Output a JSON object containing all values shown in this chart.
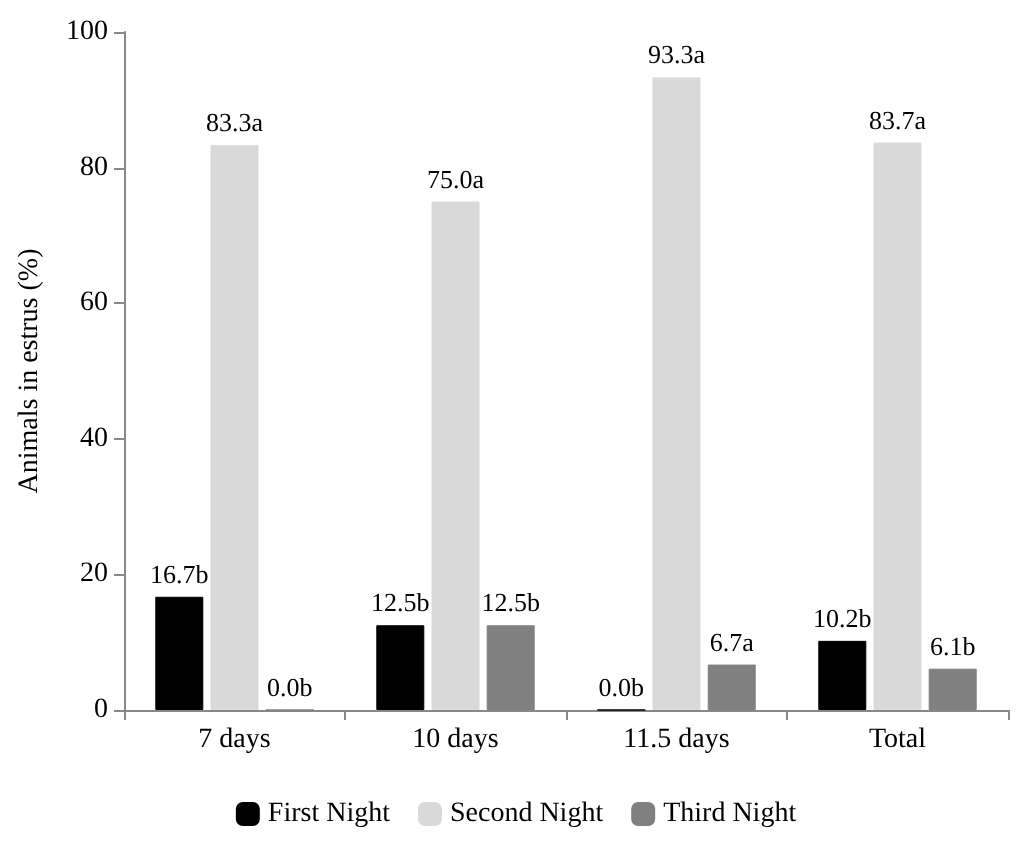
{
  "chart_data": {
    "type": "bar",
    "ylabel": "Animals in estrus (%)",
    "categories": [
      "7 days",
      "10 days",
      "11.5 days",
      "Total"
    ],
    "series": [
      {
        "name": "First Night",
        "color": "#000000",
        "values": [
          16.7,
          12.5,
          0.0,
          10.2
        ],
        "value_labels": [
          "16.7b",
          "12.5b",
          "0.0b",
          "10.2b"
        ]
      },
      {
        "name": "Second Night",
        "color": "#d9d9d9",
        "values": [
          83.3,
          75.0,
          93.3,
          83.7
        ],
        "value_labels": [
          "83.3a",
          "75.0a",
          "93.3a",
          "83.7a"
        ]
      },
      {
        "name": "Third Night",
        "color": "#808080",
        "values": [
          0.0,
          12.5,
          6.7,
          6.1
        ],
        "value_labels": [
          "0.0b",
          "12.5b",
          "6.7a",
          "6.1b"
        ]
      }
    ],
    "ylim": [
      0,
      100
    ],
    "yticks": [
      0,
      20,
      40,
      60,
      80,
      100
    ],
    "grid": false,
    "legend": "bottom"
  }
}
